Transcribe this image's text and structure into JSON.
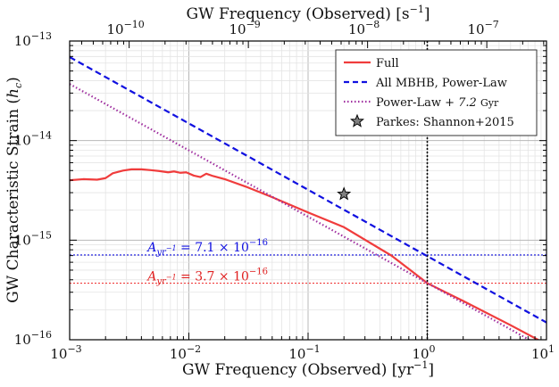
{
  "chart_data": {
    "type": "line",
    "x_scale": "log",
    "y_scale": "log",
    "xlim": [
      0.001,
      10
    ],
    "ylim": [
      1e-16,
      1e-13
    ],
    "xlabel": "GW Frequency (Observed)",
    "xlabel_unit": "[yr",
    "xlabel_unit_exp": "−1",
    "xlabel_unit_end": "]",
    "x2label": "GW Frequency (Observed)",
    "x2label_unit": "[s",
    "x2label_unit_exp": "−1",
    "x2label_unit_end": "]",
    "ylabel": "GW Characteristic Strain (",
    "ylabel_var": "h",
    "ylabel_sub": "c",
    "ylabel_end": ")",
    "x_ticks": [
      {
        "value": 0.001,
        "base": "10",
        "exp": "−3"
      },
      {
        "value": 0.01,
        "base": "10",
        "exp": "−2"
      },
      {
        "value": 0.1,
        "base": "10",
        "exp": "−1"
      },
      {
        "value": 1,
        "base": "10",
        "exp": "0"
      },
      {
        "value": 10,
        "base": "10",
        "exp": "1"
      }
    ],
    "x2_ticks": [
      {
        "value_hz": 1e-10,
        "base": "10",
        "exp": "−10"
      },
      {
        "value_hz": 1e-09,
        "base": "10",
        "exp": "−9"
      },
      {
        "value_hz": 1e-08,
        "base": "10",
        "exp": "−8"
      },
      {
        "value_hz": 1e-07,
        "base": "10",
        "exp": "−7"
      }
    ],
    "seconds_per_year": 31557600,
    "y_ticks": [
      {
        "value": 1e-16,
        "base": "10",
        "exp": "−16"
      },
      {
        "value": 1e-15,
        "base": "10",
        "exp": "−15"
      },
      {
        "value": 1e-14,
        "base": "10",
        "exp": "−14"
      },
      {
        "value": 1e-13,
        "base": "10",
        "exp": "−13"
      }
    ],
    "series": [
      {
        "name": "Full",
        "style": "solid",
        "color": "#f03c3c",
        "x": [
          0.001,
          0.0013,
          0.0017,
          0.002,
          0.0023,
          0.0028,
          0.0033,
          0.004,
          0.0048,
          0.0056,
          0.0067,
          0.0075,
          0.0085,
          0.0095,
          0.011,
          0.0125,
          0.014,
          0.016,
          0.02,
          0.03,
          0.05,
          0.1,
          0.2,
          0.5,
          1,
          2,
          5,
          10
        ],
        "y": [
          4e-15,
          4.1e-15,
          4.05e-15,
          4.2e-15,
          4.7e-15,
          5e-15,
          5.15e-15,
          5.15e-15,
          5.05e-15,
          4.95e-15,
          4.8e-15,
          4.9e-15,
          4.75e-15,
          4.8e-15,
          4.45e-15,
          4.3e-15,
          4.65e-15,
          4.4e-15,
          4.1e-15,
          3.45e-15,
          2.7e-15,
          1.9e-15,
          1.35e-15,
          7e-16,
          3.7e-16,
          2.45e-16,
          1.4e-16,
          9e-17
        ]
      },
      {
        "name": "All MBHB, Power-Law",
        "style": "dashed",
        "color": "#1010e0",
        "x": [
          0.001,
          10
        ],
        "y": [
          6.9e-14,
          1.49e-16
        ]
      },
      {
        "name": "Power-Law + ",
        "name_math": "7.2",
        "name_unit": "Gyr",
        "style": "dotted",
        "color": "#a030a0",
        "x": [
          0.001,
          10
        ],
        "y": [
          3.7e-14,
          8e-17
        ]
      },
      {
        "name": "Parkes: Shannon+2015",
        "style": "marker-star",
        "color": "#808080",
        "x": [
          0.2
        ],
        "y": [
          2.9e-15
        ]
      }
    ],
    "reference_lines": [
      {
        "orientation": "horizontal",
        "y": 7.1e-16,
        "color": "#1010e0",
        "style": "dotted"
      },
      {
        "orientation": "horizontal",
        "y": 3.7e-16,
        "color": "#f03c3c",
        "style": "dotted"
      },
      {
        "orientation": "vertical",
        "x": 1,
        "color": "#000000",
        "style": "dotted"
      }
    ],
    "annotations": [
      {
        "x": 0.0045,
        "y": 7.7e-16,
        "color": "#1010e0",
        "var": "A",
        "sub": "yr",
        "sub_exp": "−1",
        "mid": " = 7.1 × 10",
        "exp": "−16"
      },
      {
        "x": 0.0045,
        "y": 3.95e-16,
        "color": "#e02020",
        "var": "A",
        "sub": "yr",
        "sub_exp": "−1",
        "mid": " = 3.7 × 10",
        "exp": "−16"
      }
    ],
    "legend_position": "top-right",
    "grid": true
  }
}
